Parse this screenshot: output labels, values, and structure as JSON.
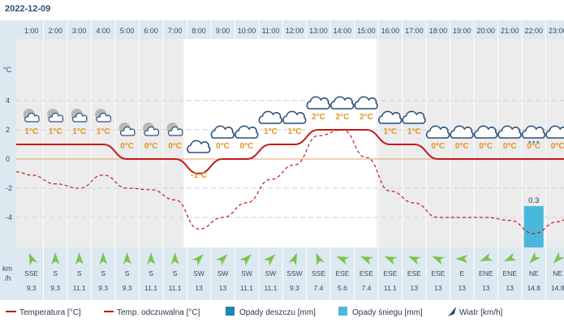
{
  "header": {
    "date": "2022-12-09"
  },
  "axis": {
    "temp_unit_label": "°C",
    "wind_unit_label_top": "km",
    "wind_unit_label_bottom": "/h",
    "y_ticks": [
      "4",
      "2",
      "0",
      "-2",
      "-4"
    ]
  },
  "colors": {
    "temp_line": "#c8171b",
    "feels_line": "#c8171b",
    "rain": "#1a86b0",
    "snow": "#4ab8dc",
    "wind_arrow": "#7dc24b",
    "zero_line": "#e5a26b",
    "panel": "#dce9f1",
    "night_shade": "#ececec"
  },
  "chart_data": {
    "type": "line",
    "title": "2022-12-09",
    "hours": [
      "1:00",
      "2:00",
      "3:00",
      "4:00",
      "5:00",
      "6:00",
      "7:00",
      "8:00",
      "9:00",
      "10:00",
      "11:00",
      "12:00",
      "13:00",
      "14:00",
      "15:00",
      "16:00",
      "17:00",
      "18:00",
      "19:00",
      "20:00",
      "21:00",
      "22:00",
      "23:00"
    ],
    "temperature_c": [
      1,
      1,
      1,
      1,
      0,
      0,
      0,
      -1,
      0,
      0,
      1,
      1,
      2,
      2,
      2,
      1,
      1,
      0,
      0,
      0,
      0,
      0,
      0
    ],
    "temperature_labels": [
      "1°C",
      "1°C",
      "1°C",
      "1°C",
      "0°C",
      "0°C",
      "0°C",
      "-1°C",
      "0°C",
      "0°C",
      "1°C",
      "1°C",
      "2°C",
      "2°C",
      "2°C",
      "1°C",
      "1°C",
      "0°C",
      "0°C",
      "0°C",
      "0°C",
      "0°C",
      "0°C"
    ],
    "feels_like_c": [
      -1.1,
      -1.7,
      -2.0,
      -1.1,
      -2.0,
      -2.1,
      -2.8,
      -4.8,
      -4.0,
      -3.0,
      -1.4,
      -0.4,
      1.6,
      2.0,
      0.1,
      -2.2,
      -3.0,
      -4.0,
      -4.0,
      -4.0,
      -4.2,
      -5.1,
      -4.3
    ],
    "rain_mm": [
      0,
      0,
      0,
      0,
      0,
      0,
      0,
      0,
      0,
      0,
      0,
      0,
      0,
      0,
      0,
      0,
      0,
      0,
      0,
      0,
      0,
      0,
      0
    ],
    "snow_mm": [
      0,
      0,
      0,
      0,
      0,
      0,
      0,
      0,
      0,
      0,
      0,
      0,
      0,
      0,
      0,
      0,
      0,
      0,
      0,
      0,
      0,
      0.3,
      0
    ],
    "snow_labels": [
      "",
      "",
      "",
      "",
      "",
      "",
      "",
      "",
      "",
      "",
      "",
      "",
      "",
      "",
      "",
      "",
      "",
      "",
      "",
      "",
      "",
      "0.3",
      ""
    ],
    "wind_dir": [
      "SSE",
      "S",
      "S",
      "S",
      "S",
      "S",
      "S",
      "SW",
      "SW",
      "SW",
      "SW",
      "SSW",
      "SSE",
      "ESE",
      "ESE",
      "ESE",
      "ESE",
      "ESE",
      "E",
      "ENE",
      "ENE",
      "NE",
      "NE"
    ],
    "wind_kmh": [
      "9.3",
      "9.3",
      "11.1",
      "9.3",
      "9.3",
      "11.1",
      "11.1",
      "13",
      "13",
      "11.1",
      "11.1",
      "9.3",
      "7.4",
      "5.6",
      "7.4",
      "11.1",
      "13",
      "13",
      "13",
      "13",
      "13",
      "14.8",
      "14.8"
    ],
    "weather_icons": [
      "night-partly-cloudy",
      "night-partly-cloudy",
      "night-partly-cloudy",
      "night-partly-cloudy",
      "night-partly-cloudy",
      "night-partly-cloudy",
      "night-partly-cloudy",
      "cloudy",
      "cloudy",
      "cloudy",
      "cloudy",
      "cloudy",
      "cloudy",
      "cloudy",
      "cloudy",
      "cloudy",
      "cloudy",
      "cloudy",
      "cloudy",
      "cloudy",
      "cloudy",
      "snow",
      "cloudy"
    ],
    "ylim": [
      -6,
      6
    ],
    "yticks": [
      4,
      2,
      0,
      -2,
      -4
    ],
    "series": [
      {
        "name": "Temperatura [°C]"
      },
      {
        "name": "Temp. odczuwalna [°C]"
      },
      {
        "name": "Opady deszczu [mm]"
      },
      {
        "name": "Opady śniegu [mm]"
      },
      {
        "name": "Wiatr [km/h]"
      }
    ]
  }
}
